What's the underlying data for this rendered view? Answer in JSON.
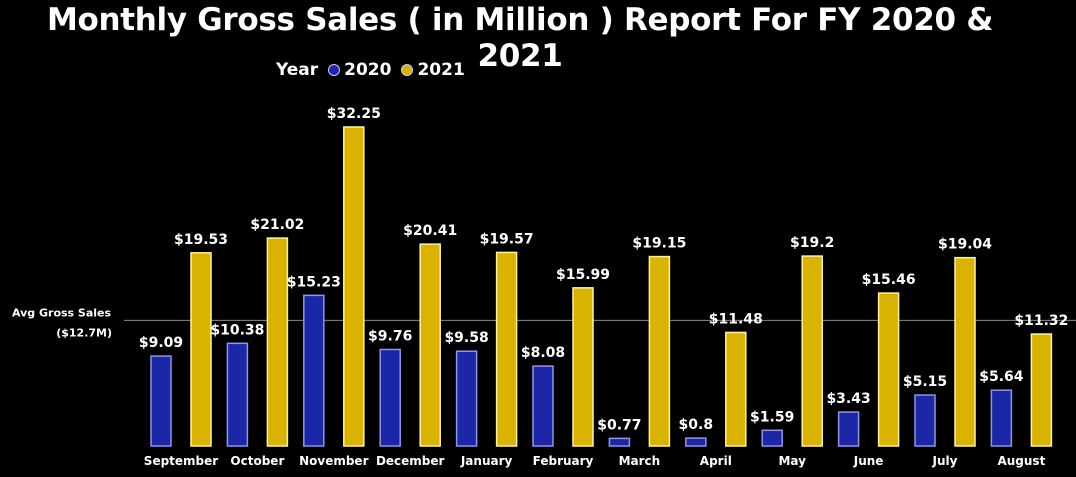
{
  "chart_data": {
    "type": "bar",
    "title": "Monthly Gross Sales ( in Million ) Report For FY 2020 & 2021",
    "legend_title": "Year",
    "legend_position": "top",
    "categories": [
      "September",
      "October",
      "November",
      "December",
      "January",
      "February",
      "March",
      "April",
      "May",
      "June",
      "July",
      "August"
    ],
    "series": [
      {
        "name": "2020",
        "color": "#1b27a6",
        "values": [
          9.09,
          10.38,
          15.23,
          9.76,
          9.58,
          8.08,
          0.77,
          0.8,
          1.59,
          3.43,
          5.15,
          5.64
        ],
        "labels": [
          "$9.09",
          "$10.38",
          "$15.23",
          "$9.76",
          "$9.58",
          "$8.08",
          "$0.77",
          "$0.8",
          "$1.59",
          "$3.43",
          "$5.15",
          "$5.64"
        ]
      },
      {
        "name": "2021",
        "color": "#d9b300",
        "values": [
          19.53,
          21.02,
          32.25,
          20.41,
          19.57,
          15.99,
          19.15,
          11.48,
          19.2,
          15.46,
          19.04,
          11.32
        ],
        "labels": [
          "$19.53",
          "$21.02",
          "$32.25",
          "$20.41",
          "$19.57",
          "$15.99",
          "$19.15",
          "$11.48",
          "$19.2",
          "$15.46",
          "$19.04",
          "$11.32"
        ]
      }
    ],
    "reference_line": {
      "value": 12.7,
      "label_line1": "Avg Gross Sales",
      "label_line2": "($12.7M)"
    },
    "ylim": [
      0,
      32.25
    ],
    "grid": false,
    "xlabel": "",
    "ylabel": ""
  }
}
